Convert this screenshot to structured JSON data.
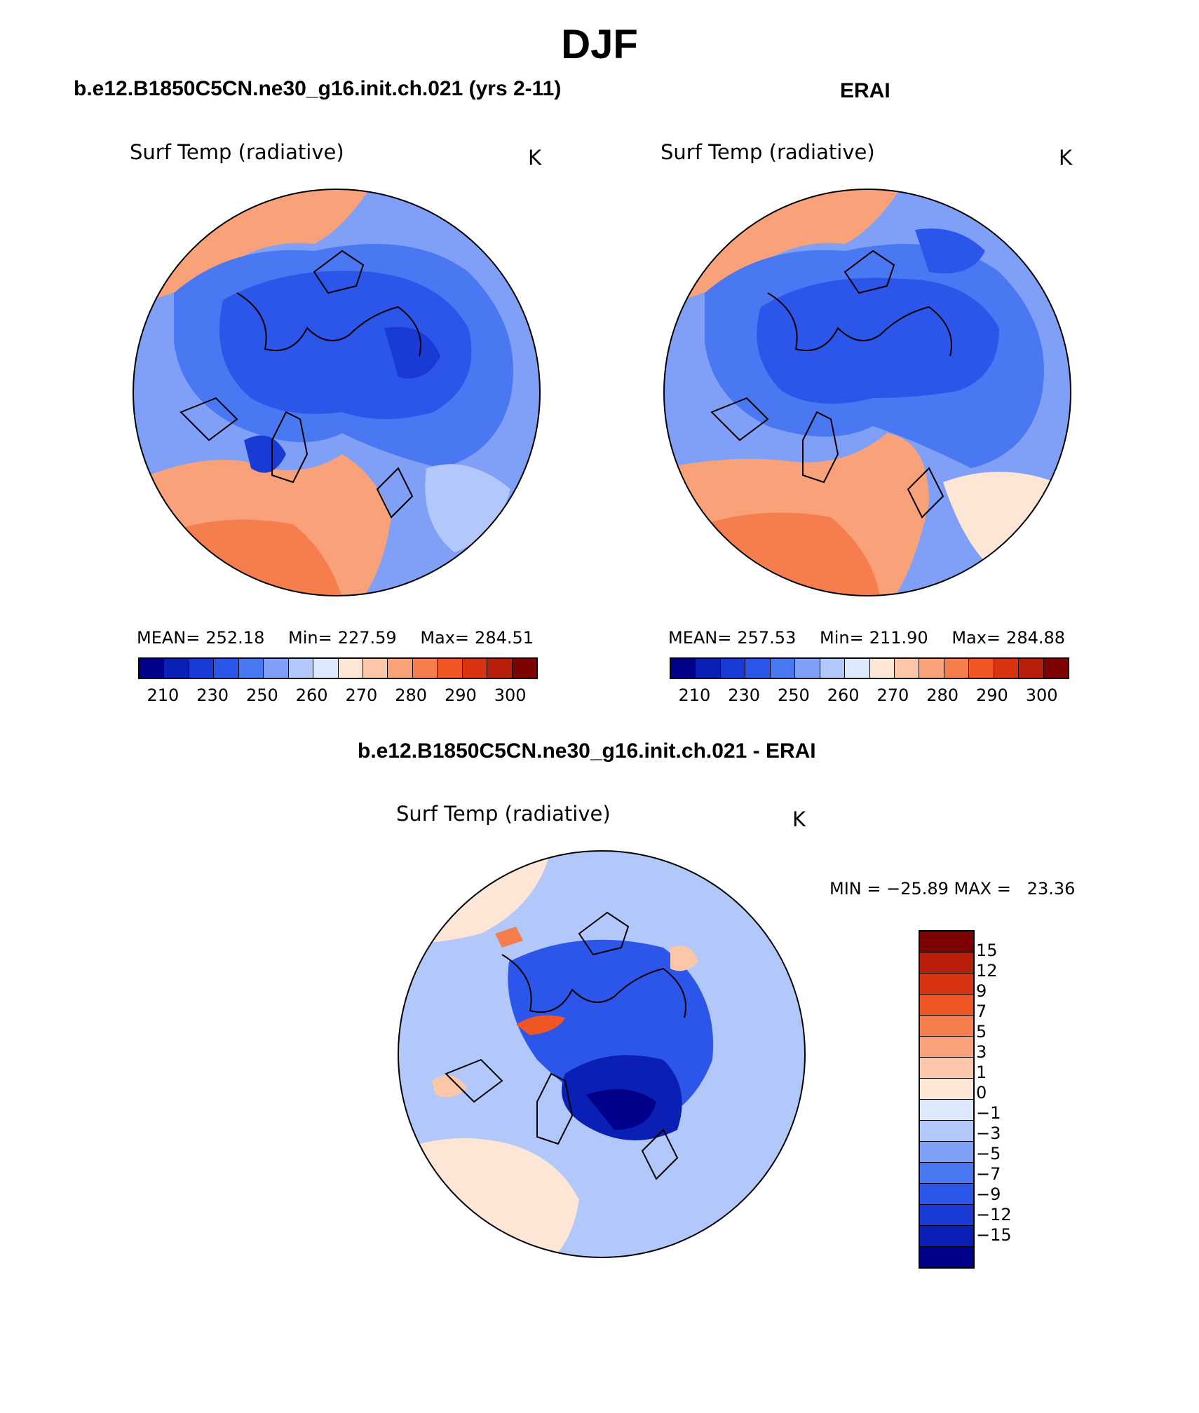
{
  "figure": {
    "season": "DJF"
  },
  "panel_model": {
    "case_title": "b.e12.B1850C5CN.ne30_g16.init.ch.021 (yrs 2-11)",
    "variable": "Surf Temp (radiative)",
    "units": "K",
    "mean_label": "MEAN=",
    "mean": "252.18",
    "min_label": "Min=",
    "min": "227.59",
    "max_label": "Max=",
    "max": "284.51"
  },
  "panel_obs": {
    "case_title": "ERAI",
    "variable": "Surf Temp (radiative)",
    "units": "K",
    "mean_label": "MEAN=",
    "mean": "257.53",
    "min_label": "Min=",
    "min": "211.90",
    "max_label": "Max=",
    "max": "284.88"
  },
  "panel_diff": {
    "case_title": "b.e12.B1850C5CN.ne30_g16.init.ch.021 - ERAI",
    "variable": "Surf Temp (radiative)",
    "units": "K",
    "minmax_text": "MIN = −25.89 MAX =   23.36"
  },
  "colorbar_abs": {
    "colors": [
      "#00008a",
      "#0a1fb4",
      "#1a3ad6",
      "#2c56ea",
      "#4a77f2",
      "#7fa0f6",
      "#b3c8fa",
      "#dbe8fd",
      "#fde6d6",
      "#fcc6a8",
      "#f9a27a",
      "#f67e4e",
      "#f05524",
      "#d93412",
      "#b81f0a",
      "#7d0303"
    ],
    "tick_labels": [
      "210",
      "230",
      "250",
      "260",
      "270",
      "280",
      "290",
      "300"
    ]
  },
  "colorbar_diff": {
    "colors": [
      "#7d0303",
      "#b81f0a",
      "#d93412",
      "#f05524",
      "#f67e4e",
      "#f9a27a",
      "#fcc6a8",
      "#fde6d6",
      "#dbe8fd",
      "#b3c8fa",
      "#7fa0f6",
      "#4a77f2",
      "#2c56ea",
      "#1a3ad6",
      "#0a1fb4",
      "#00008a"
    ],
    "tick_labels": [
      "15",
      "12",
      "9",
      "7",
      "5",
      "3",
      "1",
      "0",
      "−1",
      "−3",
      "−5",
      "−7",
      "−9",
      "−12",
      "−15"
    ]
  },
  "colors": {
    "land_outline": "#000000",
    "ocean_warm": "#f9a27a",
    "arctic_cold": "#2c56ea"
  }
}
